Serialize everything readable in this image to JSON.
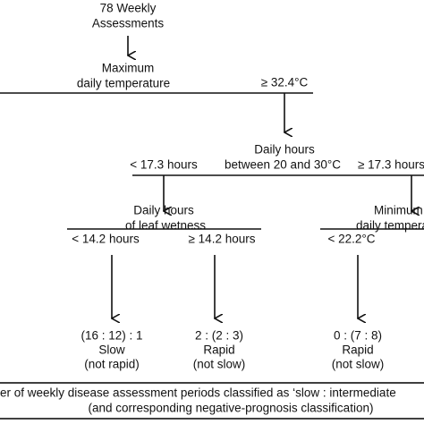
{
  "root": {
    "lines": [
      "78 Weekly",
      "Assessments"
    ]
  },
  "node_max_temp": {
    "lines": [
      "Maximum",
      "daily temperature"
    ],
    "branch_right": "≥ 32.4°C"
  },
  "node_daily_hours": {
    "lines": [
      "Daily hours",
      "between 20 and  30°C"
    ],
    "branch_left": "< 17.3 hours",
    "branch_right": "≥ 17.3 hours"
  },
  "node_leaf_wetness": {
    "lines": [
      "Daily hours",
      "of leaf wetness"
    ],
    "branch_left": "< 14.2 hours",
    "branch_right": "≥ 14.2 hours"
  },
  "node_min_temp": {
    "lines": [
      "Minimum",
      "daily temperature"
    ],
    "branch_left": "< 22.2°C"
  },
  "leaves": [
    {
      "lines": [
        "(16 : 12) : 1",
        "Slow",
        "(not rapid)"
      ]
    },
    {
      "lines": [
        "2 : (2 : 3)",
        "Rapid",
        "(not slow)"
      ]
    },
    {
      "lines": [
        "0 : (7 : 8)",
        "Rapid",
        "(not slow)"
      ]
    }
  ],
  "footnote": {
    "lines": [
      "er of weekly disease assessment periods classified as ‘slow : intermediate",
      "(and corresponding negative-prognosis classification)"
    ]
  }
}
